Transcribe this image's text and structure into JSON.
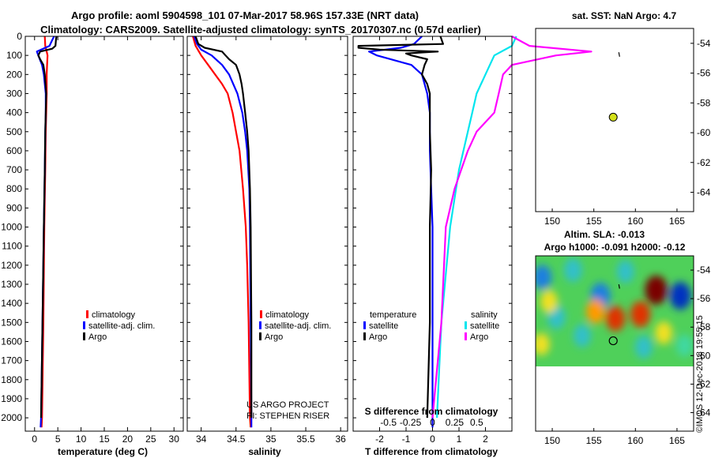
{
  "chart_data": {
    "type": "line",
    "title_line1": "Argo profile: aoml 5904598_101 07-Mar-2017 58.96S 157.33E (NRT data)",
    "title_line2": "Climatology: CARS2009. Satellite-adjusted climatology: synTS_20170307.nc (0.57d earlier)",
    "depth_ticks": [
      "0",
      "100",
      "200",
      "300",
      "400",
      "500",
      "600",
      "700",
      "800",
      "900",
      "1000",
      "1100",
      "1200",
      "1300",
      "1400",
      "1500",
      "1600",
      "1700",
      "1800",
      "1900",
      "2000"
    ],
    "colors": {
      "climatology": "#ff0000",
      "satellite": "#0000ff",
      "argo": "#000000",
      "sat_salinity": "#00e5ee",
      "argo_salinity": "#ff00ff",
      "float": "#d4e11a"
    },
    "temperature": {
      "xlabel": "temperature (deg C)",
      "xlim": [
        -2,
        32
      ],
      "ylim": [
        2070,
        0
      ],
      "xticks": [
        "0",
        "5",
        "10",
        "15",
        "20",
        "25",
        "30"
      ],
      "legend": [
        "climatology",
        "satellite-adj. clim.",
        "Argo"
      ],
      "series": [
        {
          "name": "climatology",
          "color": "#ff0000",
          "depth": [
            0,
            50,
            80,
            100,
            150,
            200,
            300,
            400,
            500,
            700,
            1000,
            1500,
            2000,
            2050
          ],
          "value": [
            2.2,
            2.3,
            2.6,
            2.8,
            2.7,
            2.6,
            2.6,
            2.5,
            2.4,
            2.3,
            2.1,
            1.9,
            1.6,
            1.5
          ]
        },
        {
          "name": "satellite-adj. clim.",
          "color": "#0000ff",
          "depth": [
            0,
            20,
            50,
            80,
            100,
            150,
            200,
            300,
            400,
            500,
            700,
            1000,
            1500,
            2000,
            2050
          ],
          "value": [
            4.2,
            3.8,
            3.2,
            0.5,
            0.8,
            1.6,
            2.0,
            2.4,
            2.4,
            2.3,
            2.2,
            2.0,
            1.7,
            1.4,
            1.3
          ]
        },
        {
          "name": "Argo",
          "color": "#000000",
          "depth": [
            0,
            20,
            50,
            65,
            80,
            100,
            120,
            150,
            200,
            300,
            400,
            500,
            700,
            1000,
            1500,
            2000
          ],
          "value": [
            4.7,
            4.6,
            4.5,
            3.8,
            1.2,
            0.8,
            1.2,
            1.9,
            2.2,
            2.5,
            2.4,
            2.3,
            2.2,
            2.0,
            1.7,
            1.4
          ]
        }
      ]
    },
    "salinity": {
      "xlabel": "salinity",
      "xlim": [
        33.8,
        36.1
      ],
      "ylim": [
        2070,
        0
      ],
      "xticks": [
        "34",
        "34.5",
        "35",
        "35.5",
        "36"
      ],
      "legend": [
        "climatology",
        "satellite-adj. clim.",
        "Argo"
      ],
      "credit_line1": "US ARGO PROJECT",
      "credit_line2": "PI: STEPHEN RISER",
      "series": [
        {
          "name": "climatology",
          "color": "#ff0000",
          "depth": [
            0,
            50,
            100,
            150,
            200,
            250,
            300,
            400,
            500,
            600,
            800,
            1000,
            1200,
            1500,
            2000,
            2050
          ],
          "value": [
            33.88,
            33.92,
            34.0,
            34.1,
            34.2,
            34.3,
            34.38,
            34.45,
            34.5,
            34.55,
            34.6,
            34.64,
            34.66,
            34.68,
            34.7,
            34.71
          ]
        },
        {
          "name": "satellite-adj. clim.",
          "color": "#0000ff",
          "depth": [
            0,
            40,
            70,
            100,
            150,
            200,
            300,
            400,
            500,
            600,
            800,
            1000,
            1500,
            2000,
            2050
          ],
          "value": [
            33.9,
            33.94,
            34.0,
            34.15,
            34.3,
            34.4,
            34.52,
            34.59,
            34.63,
            34.66,
            34.69,
            34.7,
            34.71,
            34.72,
            34.72
          ]
        },
        {
          "name": "Argo",
          "color": "#000000",
          "depth": [
            0,
            40,
            60,
            80,
            100,
            120,
            150,
            200,
            250,
            300,
            400,
            500,
            600,
            800,
            1000,
            1500,
            2000
          ],
          "value": [
            33.92,
            33.96,
            34.05,
            34.3,
            34.35,
            34.4,
            34.5,
            34.55,
            34.58,
            34.6,
            34.63,
            34.66,
            34.68,
            34.7,
            34.71,
            34.72,
            34.72
          ]
        }
      ]
    },
    "difference": {
      "xlabel": "T difference from climatology",
      "s_label": "S difference from climatology",
      "xlim": [
        -3,
        3
      ],
      "ylim": [
        2070,
        0
      ],
      "xticks": [
        "-2",
        "-1",
        "0",
        "1",
        "2"
      ],
      "s_ticks": [
        "-0.5",
        "-0.25",
        "0",
        "0.25",
        "0.5"
      ],
      "legend_temperature_title": "temperature",
      "legend_salinity_title": "salinity",
      "legend_temperature": [
        "satellite",
        "Argo"
      ],
      "legend_salinity": [
        "satellite",
        "Argo"
      ],
      "series": [
        {
          "name": "T satellite",
          "color": "#0000ff",
          "depth": [
            0,
            40,
            60,
            80,
            100,
            150,
            200,
            300,
            400,
            600,
            1000,
            1500,
            2000,
            2050
          ],
          "value": [
            -0.4,
            -0.7,
            -1.2,
            -2.4,
            -2.1,
            -0.8,
            -0.4,
            -0.2,
            -0.1,
            -0.1,
            0.0,
            0.0,
            0.0,
            0.0
          ]
        },
        {
          "name": "T Argo",
          "color": "#000000",
          "depth": [
            0,
            40,
            50,
            60,
            70,
            80,
            90,
            100,
            120,
            150,
            200,
            250,
            300,
            400,
            500,
            700,
            1000,
            1200,
            1500,
            2000
          ],
          "value": [
            0.3,
            0.4,
            -2.8,
            -2.8,
            -2.0,
            0.2,
            -1.0,
            -0.8,
            -0.2,
            -0.3,
            -0.4,
            -0.2,
            -0.1,
            -0.1,
            -0.1,
            -0.05,
            -0.1,
            -0.1,
            -0.1,
            -0.2
          ]
        },
        {
          "name": "S satellite",
          "color": "#00e5ee",
          "depth": [
            0,
            50,
            100,
            150,
            200,
            300,
            400,
            500,
            700,
            1000,
            1500,
            2000
          ],
          "value": [
            0.95,
            0.9,
            0.7,
            0.65,
            0.6,
            0.5,
            0.45,
            0.4,
            0.3,
            0.2,
            0.1,
            0.05
          ]
        },
        {
          "name": "S Argo",
          "color": "#ff00ff",
          "depth": [
            0,
            50,
            80,
            100,
            150,
            200,
            300,
            400,
            500,
            600,
            800,
            1000,
            1500,
            2000
          ],
          "value": [
            0.9,
            1.1,
            1.8,
            1.4,
            0.9,
            0.8,
            0.75,
            0.7,
            0.5,
            0.4,
            0.25,
            0.15,
            0.1,
            0.0
          ]
        }
      ]
    },
    "map_sst": {
      "title": "sat. SST: NaN Argo: 4.7",
      "xlim": [
        148,
        167
      ],
      "ylim": [
        -65.3,
        -53
      ],
      "xticks": [
        "150",
        "155",
        "160",
        "165"
      ],
      "yticks": [
        "-54",
        "-56",
        "-58",
        "-60",
        "-62",
        "-64"
      ],
      "float_lon": 157.33,
      "float_lat": -58.96,
      "track": [
        [
          158.0,
          -54.6
        ],
        [
          158.1,
          -54.9
        ]
      ]
    },
    "map_sla": {
      "title_line1": "Altim. SLA: -0.013",
      "title_line2": "Argo h1000: -0.091 h2000: -0.12",
      "xlim": [
        148,
        167
      ],
      "ylim": [
        -65.3,
        -53
      ],
      "xticks": [
        "150",
        "155",
        "160",
        "165"
      ],
      "yticks": [
        "-54",
        "-56",
        "-58",
        "-60",
        "-62",
        "-64"
      ],
      "float_lon": 157.33,
      "float_lat": -58.96,
      "track": [
        [
          158.0,
          -55.0
        ],
        [
          158.1,
          -55.3
        ]
      ],
      "data_lat_min": -60.0,
      "blobs": [
        {
          "lon": 148.8,
          "lat": -54.5,
          "v": -0.7
        },
        {
          "lon": 152.5,
          "lat": -54.0,
          "v": -0.6
        },
        {
          "lon": 155.8,
          "lat": -55.8,
          "v": -0.9
        },
        {
          "lon": 158.8,
          "lat": -54.1,
          "v": -0.5
        },
        {
          "lon": 162.5,
          "lat": -55.4,
          "v": 1.3
        },
        {
          "lon": 165.4,
          "lat": -55.8,
          "v": -1.1
        },
        {
          "lon": 160.6,
          "lat": -57.1,
          "v": 0.9
        },
        {
          "lon": 157.6,
          "lat": -57.4,
          "v": 0.8
        },
        {
          "lon": 150.5,
          "lat": -57.3,
          "v": -0.6
        },
        {
          "lon": 153.6,
          "lat": -58.6,
          "v": -0.5
        },
        {
          "lon": 148.7,
          "lat": -59.2,
          "v": 0.4
        },
        {
          "lon": 163.4,
          "lat": -58.4,
          "v": 0.5
        },
        {
          "lon": 155.2,
          "lat": -56.9,
          "v": 0.7
        },
        {
          "lon": 165.9,
          "lat": -59.3,
          "v": -0.4
        },
        {
          "lon": 149.6,
          "lat": -56.2,
          "v": 0.5
        },
        {
          "lon": 161.0,
          "lat": -59.4,
          "v": -0.5
        }
      ]
    },
    "credit": "©IMOS 12-Dec-2018 19:55:15"
  }
}
